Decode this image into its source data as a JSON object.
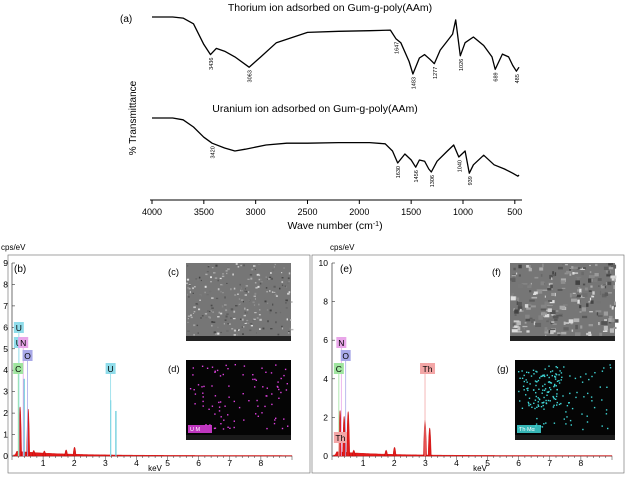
{
  "chart_data": [
    {
      "type": "line",
      "panel_label": "(a)",
      "xlabel": "Wave number (cm",
      "xlabel_sup": "-1",
      "xlabel_end": ")",
      "ylabel": "% Transmittance",
      "xlim": [
        4000,
        450
      ],
      "x_ticks": [
        4000,
        3500,
        3000,
        2500,
        2000,
        1500,
        1000,
        500
      ],
      "series": [
        {
          "name": "Thorium ion adsorbed on Gum-g-poly(AAm)",
          "x": [
            4000,
            3800,
            3700,
            3600,
            3500,
            3436,
            3380,
            3300,
            3200,
            3063,
            2950,
            2800,
            2500,
            2200,
            1900,
            1700,
            1647,
            1600,
            1520,
            1483,
            1420,
            1370,
            1320,
            1277,
            1220,
            1150,
            1100,
            1070,
            1026,
            980,
            900,
            800,
            720,
            689,
            620,
            560,
            520,
            485,
            460
          ],
          "y": [
            0.0,
            0.0,
            0.02,
            0.12,
            0.48,
            0.66,
            0.55,
            0.6,
            0.7,
            0.88,
            0.7,
            0.45,
            0.27,
            0.25,
            0.24,
            0.23,
            0.38,
            0.45,
            0.78,
            1.0,
            0.72,
            0.66,
            0.74,
            0.82,
            0.58,
            0.42,
            0.3,
            0.05,
            0.68,
            0.45,
            0.35,
            0.5,
            0.7,
            0.92,
            0.65,
            0.7,
            0.85,
            0.95,
            0.88
          ],
          "annotations": [
            {
              "x": 3436,
              "label": "3436"
            },
            {
              "x": 3063,
              "label": "3063"
            },
            {
              "x": 1647,
              "label": "1647"
            },
            {
              "x": 1483,
              "label": "1483"
            },
            {
              "x": 1277,
              "label": "1277"
            },
            {
              "x": 1026,
              "label": "1026"
            },
            {
              "x": 689,
              "label": "689"
            },
            {
              "x": 485,
              "label": "485"
            }
          ]
        },
        {
          "name": "Uranium ion adsorbed on Gum-g-poly(AAm)",
          "x": [
            4000,
            3800,
            3700,
            3600,
            3500,
            3420,
            3300,
            3200,
            3100,
            2900,
            2700,
            2500,
            2200,
            1900,
            1750,
            1680,
            1630,
            1560,
            1500,
            1456,
            1420,
            1370,
            1330,
            1306,
            1250,
            1150,
            1090,
            1040,
            980,
            939,
            900,
            800,
            700,
            600,
            520,
            470,
            460
          ],
          "y": [
            0.0,
            0.0,
            0.03,
            0.15,
            0.32,
            0.42,
            0.5,
            0.55,
            0.52,
            0.45,
            0.42,
            0.42,
            0.41,
            0.41,
            0.43,
            0.55,
            0.75,
            0.6,
            0.7,
            0.82,
            0.7,
            0.72,
            0.85,
            0.9,
            0.72,
            0.55,
            0.45,
            0.65,
            0.55,
            0.92,
            0.78,
            0.62,
            0.78,
            0.85,
            0.92,
            0.97,
            0.95
          ],
          "annotations": [
            {
              "x": 3420,
              "label": "3420"
            },
            {
              "x": 1630,
              "label": "1630"
            },
            {
              "x": 1456,
              "label": "1456"
            },
            {
              "x": 1306,
              "label": "1306"
            },
            {
              "x": 1040,
              "label": "1040"
            },
            {
              "x": 939,
              "label": "939"
            }
          ]
        }
      ]
    },
    {
      "type": "bar",
      "panel_label": "(b)",
      "ylabel": "cps/eV",
      "xlabel": "keV",
      "xlim": [
        0,
        9
      ],
      "ylim": [
        0,
        9
      ],
      "x_ticks": [
        1,
        2,
        3,
        4,
        5,
        6,
        7,
        8
      ],
      "y_ticks": [
        0,
        1,
        2,
        3,
        4,
        5,
        6,
        7,
        8,
        9
      ],
      "peaks": [
        {
          "x": 0.26,
          "y": 4.3,
          "color": "red"
        },
        {
          "x": 0.39,
          "y": 3.6,
          "color": "cyan"
        },
        {
          "x": 0.52,
          "y": 4.1,
          "color": "red"
        },
        {
          "x": 0.7,
          "y": 0.25,
          "color": "red"
        },
        {
          "x": 1.04,
          "y": 0.2,
          "color": "red"
        },
        {
          "x": 1.74,
          "y": 0.3,
          "color": "red"
        },
        {
          "x": 2.01,
          "y": 0.55,
          "color": "red"
        },
        {
          "x": 3.17,
          "y": 2.6,
          "color": "cyan"
        },
        {
          "x": 3.34,
          "y": 2.1,
          "color": "cyan"
        }
      ],
      "element_labels": [
        {
          "text": "U",
          "color": "#8fdcea"
        },
        {
          "text": "U",
          "color": "#8fdcea"
        },
        {
          "text": "N",
          "color": "#e9a6e9"
        },
        {
          "text": "O",
          "color": "#a9a9e8"
        },
        {
          "text": "C",
          "color": "#9fe59f"
        },
        {
          "text": "U",
          "color": "#8fdcea"
        }
      ],
      "insets": [
        {
          "label": "(c)",
          "kind": "sem"
        },
        {
          "label": "(d)",
          "kind": "map",
          "caption": "U M",
          "dot_color": "#e040e0"
        }
      ]
    },
    {
      "type": "bar",
      "panel_label": "(e)",
      "ylabel": "cps/eV",
      "xlabel": "keV",
      "xlim": [
        0,
        9
      ],
      "ylim": [
        0,
        10
      ],
      "x_ticks": [
        1,
        2,
        3,
        4,
        5,
        6,
        7,
        8
      ],
      "y_ticks": [
        0,
        2,
        4,
        6,
        8,
        10
      ],
      "peaks": [
        {
          "x": 0.26,
          "y": 4.4,
          "color": "red"
        },
        {
          "x": 0.39,
          "y": 3.8,
          "color": "red"
        },
        {
          "x": 0.52,
          "y": 4.3,
          "color": "red"
        },
        {
          "x": 0.7,
          "y": 0.3,
          "color": "red"
        },
        {
          "x": 1.74,
          "y": 0.3,
          "color": "red"
        },
        {
          "x": 2.01,
          "y": 0.6,
          "color": "red"
        },
        {
          "x": 2.99,
          "y": 3.4,
          "color": "red"
        },
        {
          "x": 3.14,
          "y": 2.6,
          "color": "red"
        }
      ],
      "element_labels": [
        {
          "text": "N",
          "color": "#e9a6e9"
        },
        {
          "text": "O",
          "color": "#a9a9e8"
        },
        {
          "text": "C",
          "color": "#9fe59f"
        },
        {
          "text": "Th",
          "color": "#f3a6a6"
        },
        {
          "text": "Th",
          "color": "#f3a6a6"
        }
      ],
      "insets": [
        {
          "label": "(f)",
          "kind": "sem"
        },
        {
          "label": "(g)",
          "kind": "map",
          "caption": "Th Mα",
          "dot_color": "#3fd6d6"
        }
      ]
    }
  ]
}
